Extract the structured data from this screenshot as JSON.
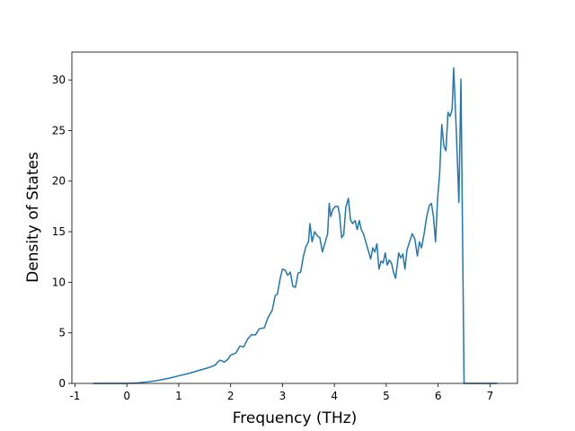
{
  "chart_data": {
    "type": "line",
    "xlabel": "Frequency (THz)",
    "ylabel": "Density of States",
    "x": [
      -0.65,
      0,
      0.2,
      0.4,
      0.6,
      0.8,
      1.0,
      1.2,
      1.4,
      1.6,
      1.7,
      1.75,
      1.8,
      1.88,
      1.95,
      2.0,
      2.1,
      2.18,
      2.25,
      2.33,
      2.4,
      2.48,
      2.55,
      2.65,
      2.72,
      2.8,
      2.86,
      2.9,
      2.96,
      3.0,
      3.05,
      3.1,
      3.15,
      3.2,
      3.25,
      3.3,
      3.35,
      3.4,
      3.45,
      3.5,
      3.53,
      3.57,
      3.62,
      3.67,
      3.72,
      3.77,
      3.82,
      3.87,
      3.9,
      3.93,
      3.97,
      4.02,
      4.07,
      4.1,
      4.14,
      4.18,
      4.22,
      4.27,
      4.31,
      4.35,
      4.4,
      4.44,
      4.48,
      4.52,
      4.56,
      4.6,
      4.65,
      4.7,
      4.74,
      4.78,
      4.82,
      4.86,
      4.9,
      4.94,
      4.98,
      5.02,
      5.06,
      5.1,
      5.14,
      5.18,
      5.24,
      5.28,
      5.32,
      5.36,
      5.4,
      5.45,
      5.5,
      5.55,
      5.6,
      5.64,
      5.68,
      5.73,
      5.78,
      5.83,
      5.87,
      5.91,
      5.95,
      5.99,
      6.03,
      6.07,
      6.11,
      6.15,
      6.19,
      6.23,
      6.27,
      6.3,
      6.35,
      6.4,
      6.44,
      6.5,
      7.14
    ],
    "series": [
      {
        "name": "DOS",
        "color": "#1f77b4",
        "values": [
          0,
          0,
          0.05,
          0.15,
          0.3,
          0.5,
          0.75,
          1.0,
          1.3,
          1.6,
          1.8,
          2.1,
          2.3,
          2.1,
          2.4,
          2.8,
          3.0,
          3.7,
          3.6,
          4.4,
          4.8,
          4.8,
          5.4,
          5.5,
          6.5,
          7.2,
          8.7,
          8.8,
          10.5,
          11.3,
          11.2,
          10.7,
          11.0,
          9.6,
          9.5,
          10.9,
          11.0,
          12.5,
          13.5,
          14.0,
          15.8,
          14.0,
          15.0,
          14.6,
          14.4,
          13.0,
          13.9,
          14.8,
          17.8,
          16.5,
          17.2,
          17.5,
          17.5,
          16.7,
          14.4,
          14.7,
          17.4,
          18.3,
          16.2,
          15.8,
          16.1,
          15.2,
          16.1,
          15.2,
          14.8,
          14.1,
          13.2,
          12.3,
          13.4,
          13.0,
          13.8,
          11.3,
          12.1,
          11.9,
          12.9,
          11.7,
          12.2,
          11.9,
          11.0,
          10.4,
          12.9,
          12.4,
          12.8,
          11.3,
          13.2,
          14.0,
          14.8,
          14.3,
          12.6,
          14.0,
          13.4,
          14.8,
          16.5,
          17.6,
          17.8,
          16.5,
          14.0,
          18.3,
          20.8,
          25.6,
          23.5,
          23.0,
          26.8,
          26.4,
          27.1,
          31.2,
          25.0,
          17.9,
          30.1,
          0,
          0
        ]
      }
    ],
    "xlim": [
      -1.06,
      7.53
    ],
    "xticks": [
      -1,
      0,
      1,
      2,
      3,
      4,
      5,
      6,
      7
    ],
    "ylim": [
      0,
      32.76
    ],
    "yticks": [
      0,
      5,
      10,
      15,
      20,
      25,
      30
    ]
  }
}
